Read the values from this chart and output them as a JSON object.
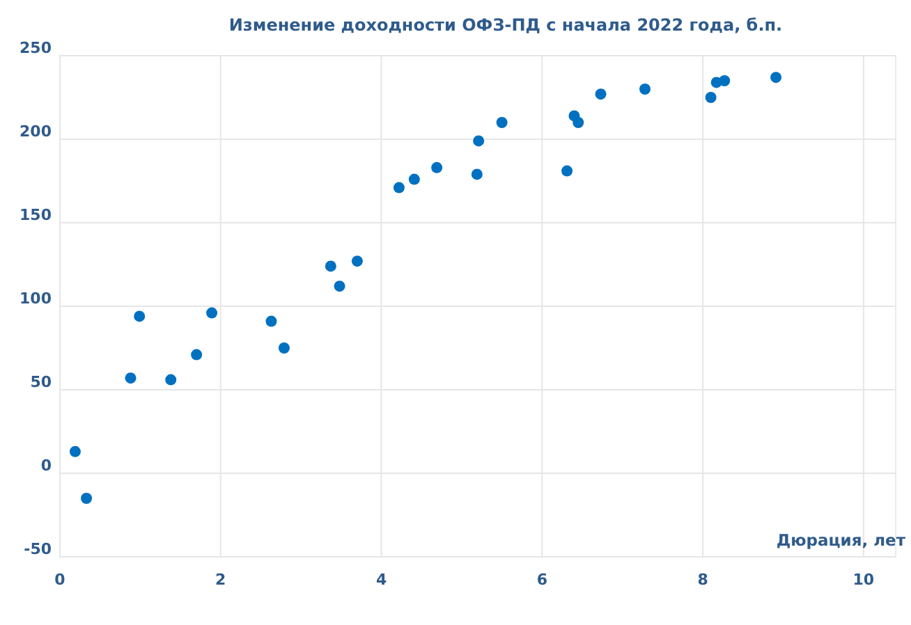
{
  "chart_data": {
    "type": "scatter",
    "title": "Изменение доходности ОФЗ-ПД с начала 2022 года, б.п.",
    "xlabel": "Дюрация, лет",
    "x": [
      0.19,
      0.33,
      0.88,
      0.99,
      1.38,
      1.7,
      1.89,
      2.63,
      2.79,
      3.37,
      3.48,
      3.7,
      4.22,
      4.41,
      4.69,
      5.21,
      5.19,
      5.5,
      6.31,
      6.4,
      6.45,
      6.73,
      7.28,
      8.1,
      8.17,
      8.27,
      8.91
    ],
    "values": [
      13,
      -15,
      57,
      94,
      56,
      71,
      96,
      91,
      75,
      124,
      112,
      127,
      171,
      176,
      183,
      199,
      179,
      210,
      181,
      214,
      210,
      227,
      230,
      225,
      234,
      235,
      237
    ],
    "color": "#0070c0",
    "marker": "circle",
    "xlim": [
      0,
      10.4
    ],
    "xticks": [
      0,
      2,
      4,
      6,
      8,
      10
    ],
    "ylim": [
      -50,
      250
    ],
    "yticks": [
      -50,
      0,
      50,
      100,
      150,
      200,
      250
    ],
    "grid": true
  }
}
